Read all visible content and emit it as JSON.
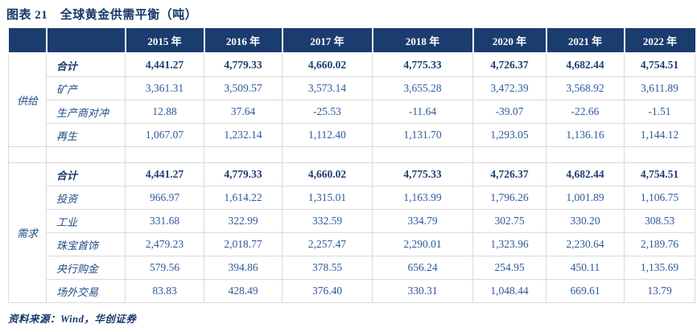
{
  "title": "图表 21　全球黄金供需平衡（吨）",
  "source": "资料来源：Wind，华创证券",
  "colors": {
    "header_bg": "#1b3c6e",
    "title_text": "#17386b",
    "value_text": "#2d5a9e",
    "bold_value_text": "#1e3f72",
    "border": "#d9d9d9"
  },
  "table": {
    "years": [
      "2015 年",
      "2016 年",
      "2017 年",
      "2018 年",
      "2020 年",
      "2021 年",
      "2022 年"
    ],
    "supply": {
      "group_label": "供给",
      "rows": [
        {
          "label": "合计",
          "bold": true,
          "values": [
            "4,441.27",
            "4,779.33",
            "4,660.02",
            "4,775.33",
            "4,726.37",
            "4,682.44",
            "4,754.51"
          ]
        },
        {
          "label": "矿产",
          "bold": false,
          "values": [
            "3,361.31",
            "3,509.57",
            "3,573.14",
            "3,655.28",
            "3,472.39",
            "3,568.92",
            "3,611.89"
          ]
        },
        {
          "label": "生产商对冲",
          "bold": false,
          "values": [
            "12.88",
            "37.64",
            "-25.53",
            "-11.64",
            "-39.07",
            "-22.66",
            "-1.51"
          ]
        },
        {
          "label": "再生",
          "bold": false,
          "values": [
            "1,067.07",
            "1,232.14",
            "1,112.40",
            "1,131.70",
            "1,293.05",
            "1,136.16",
            "1,144.12"
          ]
        }
      ]
    },
    "demand": {
      "group_label": "需求",
      "rows": [
        {
          "label": "合计",
          "bold": true,
          "values": [
            "4,441.27",
            "4,779.33",
            "4,660.02",
            "4,775.33",
            "4,726.37",
            "4,682.44",
            "4,754.51"
          ]
        },
        {
          "label": "投资",
          "bold": false,
          "values": [
            "966.97",
            "1,614.22",
            "1,315.01",
            "1,163.99",
            "1,796.26",
            "1,001.89",
            "1,106.75"
          ]
        },
        {
          "label": "工业",
          "bold": false,
          "values": [
            "331.68",
            "322.99",
            "332.59",
            "334.79",
            "302.75",
            "330.20",
            "308.53"
          ]
        },
        {
          "label": "珠宝首饰",
          "bold": false,
          "values": [
            "2,479.23",
            "2,018.77",
            "2,257.47",
            "2,290.01",
            "1,323.96",
            "2,230.64",
            "2,189.76"
          ]
        },
        {
          "label": "央行购金",
          "bold": false,
          "values": [
            "579.56",
            "394.86",
            "378.55",
            "656.24",
            "254.95",
            "450.11",
            "1,135.69"
          ]
        },
        {
          "label": "场外交易",
          "bold": false,
          "values": [
            "83.83",
            "428.49",
            "376.40",
            "330.31",
            "1,048.44",
            "669.61",
            "13.79"
          ]
        }
      ]
    }
  }
}
